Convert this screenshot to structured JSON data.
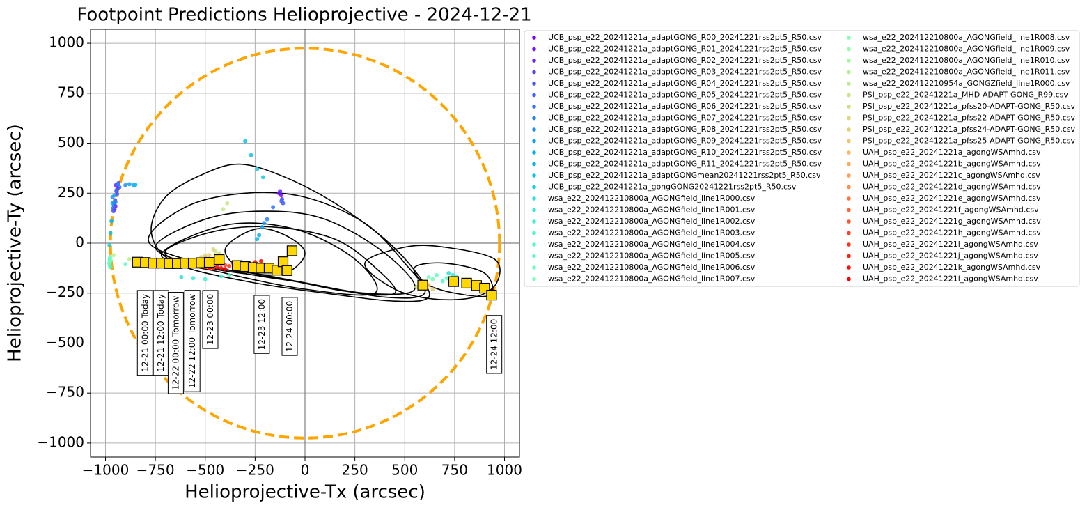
{
  "chart_data": {
    "type": "scatter",
    "title": "Footpoint Predictions Helioprojective - 2024-12-21",
    "x_label": "Helioprojective-Tx (arcsec)",
    "y_label": "Helioprojective-Ty (arcsec)",
    "xlim": [
      -1075,
      1075
    ],
    "ylim": [
      -1070,
      1070
    ],
    "xticks": [
      {
        "value": -1000,
        "label": "−1000"
      },
      {
        "value": -750,
        "label": "−750"
      },
      {
        "value": -500,
        "label": "−500"
      },
      {
        "value": -250,
        "label": "−250"
      },
      0,
      250,
      500,
      750,
      1000
    ],
    "yticks": [
      {
        "value": -1000,
        "label": "−1000"
      },
      {
        "value": -750,
        "label": "−750"
      },
      {
        "value": -500,
        "label": "−500"
      },
      {
        "value": -250,
        "label": "−250"
      },
      0,
      250,
      500,
      750,
      1000
    ],
    "grid": true,
    "legend": "outside right",
    "legend_columns": 2,
    "limb_radius": 975,
    "limb_color": "#ffa500",
    "field_line_color": "#000000",
    "series": [
      {
        "name": "UCB_psp_e22_20241221a_adaptGONG_R00_20241221rss2pt5_R50.csv",
        "color": "#8000ff",
        "x": [
          -955,
          -945,
          -120
        ],
        "y": [
          170,
          260,
          240
        ]
      },
      {
        "name": "UCB_psp_e22_20241221a_adaptGONG_R01_20241221rss2pt5_R50.csv",
        "color": "#7411ff",
        "x": [
          -950,
          -940,
          -130
        ],
        "y": [
          185,
          275,
          250
        ]
      },
      {
        "name": "UCB_psp_e22_20241221a_adaptGONG_R02_20241221rss2pt5_R50.csv",
        "color": "#6a22fe",
        "x": [
          -958,
          -948,
          -125
        ],
        "y": [
          200,
          290,
          260
        ]
      },
      {
        "name": "UCB_psp_e22_20241221a_adaptGONG_R03_20241221rss2pt5_R50.csv",
        "color": "#5443fc",
        "x": [
          -952,
          -935,
          -115
        ],
        "y": [
          215,
          300,
          220
        ]
      },
      {
        "name": "UCB_psp_e22_20241221a_adaptGONG_R04_20241221rss2pt5_R50.csv",
        "color": "#4954fb",
        "x": [
          -960,
          -942,
          -110
        ],
        "y": [
          160,
          245,
          200
        ]
      },
      {
        "name": "UCB_psp_e22_20241221a_adaptGONG_R05_20241221rss2pt5_R50.csv",
        "color": "#3e64fa",
        "x": [
          -957,
          -930,
          -118
        ],
        "y": [
          190,
          280,
          210
        ]
      },
      {
        "name": "UCB_psp_e22_20241221a_adaptGONG_R06_20241221rss2pt5_R50.csv",
        "color": "#3473f8",
        "x": [
          -962,
          -945,
          -160
        ],
        "y": [
          175,
          265,
          180
        ]
      },
      {
        "name": "UCB_psp_e22_20241221a_adaptGONG_R07_20241221rss2pt5_R50.csv",
        "color": "#2983f6",
        "x": [
          -950,
          -938,
          -190
        ],
        "y": [
          205,
          295,
          120
        ]
      },
      {
        "name": "UCB_psp_e22_20241221a_adaptGONG_R08_20241221rss2pt5_R50.csv",
        "color": "#1e92f3",
        "x": [
          -965,
          -900,
          -205
        ],
        "y": [
          230,
          290,
          100
        ]
      },
      {
        "name": "UCB_psp_e22_20241221a_adaptGONG_R09_20241221rss2pt5_R50.csv",
        "color": "#13a0f1",
        "x": [
          -955,
          -880,
          -215
        ],
        "y": [
          240,
          295,
          80
        ]
      },
      {
        "name": "UCB_psp_e22_20241221a_adaptGONG_R10_20241221rss2pt5_R50.csv",
        "color": "#08aeee",
        "x": [
          -965,
          -860,
          -230
        ],
        "y": [
          200,
          290,
          40
        ]
      },
      {
        "name": "UCB_psp_e22_20241221a_adaptGONG_R11_20241221rss2pt5_R50.csv",
        "color": "#03b8ea",
        "x": [
          -970,
          -850,
          -240
        ],
        "y": [
          110,
          292,
          20
        ]
      },
      {
        "name": "UCB_psp_e22_20241221a_adaptGONGmean20241221rss2pt5_R50.csv",
        "color": "#0ec4e7",
        "x": [
          -975,
          -300,
          -270
        ],
        "y": [
          50,
          510,
          440
        ]
      },
      {
        "name": "UCB_psp_e22_20241221a_gongGONG20241221rss2pt5_R50.csv",
        "color": "#18cde3",
        "x": [
          -980,
          -240,
          -210
        ],
        "y": [
          -10,
          370,
          330
        ]
      },
      {
        "name": "wsa_e22_202412210800a_AGONGfield_line1R000.csv",
        "color": "#2edfdb",
        "x": [
          -978,
          -620,
          720
        ],
        "y": [
          -80,
          -170,
          -150
        ]
      },
      {
        "name": "wsa_e22_202412210800a_AGONGfield_line1R001.csv",
        "color": "#39e7d6",
        "x": [
          -980,
          -560,
          740
        ],
        "y": [
          -100,
          -175,
          -160
        ]
      },
      {
        "name": "wsa_e22_202412210800a_AGONGfield_line1R002.csv",
        "color": "#44eed1",
        "x": [
          -976,
          -500,
          760
        ],
        "y": [
          -120,
          -180,
          -170
        ]
      },
      {
        "name": "wsa_e22_202412210800a_AGONGfield_line1R003.csv",
        "color": "#4ff4cc",
        "x": [
          -975,
          -420,
          690
        ],
        "y": [
          -90,
          -165,
          -190
        ]
      },
      {
        "name": "wsa_e22_202412210800a_AGONGfield_line1R004.csv",
        "color": "#59f9c7",
        "x": [
          -979,
          -380,
          710
        ],
        "y": [
          -110,
          -160,
          -175
        ]
      },
      {
        "name": "wsa_e22_202412210800a_AGONGfield_line1R005.csv",
        "color": "#64fcc1",
        "x": [
          -977,
          -900,
          660
        ],
        "y": [
          -70,
          -105,
          -160
        ]
      },
      {
        "name": "wsa_e22_202412210800a_AGONGfield_line1R006.csv",
        "color": "#6ffebb",
        "x": [
          -980,
          -860,
          640
        ],
        "y": [
          -95,
          -110,
          -180
        ]
      },
      {
        "name": "wsa_e22_202412210800a_AGONGfield_line1R007.csv",
        "color": "#7affb5",
        "x": [
          -975,
          -820,
          620
        ],
        "y": [
          -85,
          -105,
          -170
        ]
      },
      {
        "name": "wsa_e22_202412210800a_AGONGfield_line1R008.csv",
        "color": "#85ffaf",
        "x": [
          -780,
          -700,
          -600
        ],
        "y": [
          -90,
          -110,
          -95
        ]
      },
      {
        "name": "wsa_e22_202412210800a_AGONGfield_line1R009.csv",
        "color": "#90fea9",
        "x": [
          -760,
          -680,
          -580
        ],
        "y": [
          -100,
          -115,
          -90
        ]
      },
      {
        "name": "wsa_e22_202412210800a_AGONGfield_line1R010.csv",
        "color": "#9bfba2",
        "x": [
          -740,
          -660,
          -540
        ],
        "y": [
          -95,
          -105,
          -85
        ]
      },
      {
        "name": "wsa_e22_202412210800a_AGONGfield_line1R011.csv",
        "color": "#b0f395",
        "x": [
          -720,
          -640,
          -520
        ],
        "y": [
          -105,
          -110,
          -95
        ]
      },
      {
        "name": "wsa_e22_202412210954a_GONGZfield_line1R000.csv",
        "color": "#bbee8e",
        "x": [
          -960,
          -880,
          580
        ],
        "y": [
          -60,
          -80,
          -220
        ]
      },
      {
        "name": "PSI_psp_e22_20241221a_MHD-ADAPT-GONG_R99.csv",
        "color": "#c6e687",
        "x": [
          -390,
          -410,
          -450
        ],
        "y": [
          200,
          170,
          -40
        ]
      },
      {
        "name": "PSI_psp_e22_20241221a_pfss20-ADAPT-GONG_R50.csv",
        "color": "#d1de80",
        "x": [
          -500,
          -430,
          560
        ],
        "y": [
          -60,
          -50,
          -220
        ]
      },
      {
        "name": "PSI_psp_e22_20241221a_pfss22-ADAPT-GONG_R50.csv",
        "color": "#dcd779",
        "x": [
          -520,
          -460,
          600
        ],
        "y": [
          -70,
          -30,
          -200
        ]
      },
      {
        "name": "PSI_psp_e22_20241221a_pfss24-ADAPT-GONG_R50.csv",
        "color": "#e6cd72",
        "x": [
          -540,
          -480,
          640
        ],
        "y": [
          -80,
          -60,
          -230
        ]
      },
      {
        "name": "PSI_psp_e22_20241221a_pfss25-ADAPT-GONG_R50.csv",
        "color": "#f1c36a",
        "x": [
          -560,
          -500,
          620
        ],
        "y": [
          -90,
          -70,
          -210
        ]
      },
      {
        "name": "UAH_psp_e22_20241221a_agongWSAmhd.csv",
        "color": "#fcb862",
        "x": [
          -700,
          -620,
          -540
        ],
        "y": [
          -90,
          -100,
          -95
        ]
      },
      {
        "name": "UAH_psp_e22_20241221b_agongWSAmhd.csv",
        "color": "#ffab5a",
        "x": [
          -680,
          -600,
          -520
        ],
        "y": [
          -95,
          -105,
          -100
        ]
      },
      {
        "name": "UAH_psp_e22_20241221c_agongWSAmhd.csv",
        "color": "#ff9f53",
        "x": [
          -660,
          -580,
          -500
        ],
        "y": [
          -100,
          -110,
          -105
        ]
      },
      {
        "name": "UAH_psp_e22_20241221d_agongWSAmhd.csv",
        "color": "#ff924b",
        "x": [
          -640,
          -560,
          -480
        ],
        "y": [
          -105,
          -115,
          -100
        ]
      },
      {
        "name": "UAH_psp_e22_20241221e_agongWSAmhd.csv",
        "color": "#ff753b",
        "x": [
          -620,
          -540,
          -460
        ],
        "y": [
          -95,
          -110,
          -100
        ]
      },
      {
        "name": "UAH_psp_e22_20241221f_agongWSAmhd.csv",
        "color": "#ff6533",
        "x": [
          -600,
          -520,
          -440
        ],
        "y": [
          -100,
          -105,
          -110
        ]
      },
      {
        "name": "UAH_psp_e22_20241221g_agongWSAmhd.csv",
        "color": "#ff542a",
        "x": [
          -580,
          -500,
          -420
        ],
        "y": [
          -110,
          -115,
          -105
        ]
      },
      {
        "name": "UAH_psp_e22_20241221h_agongWSAmhd.csv",
        "color": "#ff4322",
        "x": [
          -560,
          -480,
          -400
        ],
        "y": [
          -105,
          -120,
          -110
        ]
      },
      {
        "name": "UAH_psp_e22_20241221i_agongWSAmhd.csv",
        "color": "#ff331a",
        "x": [
          -540,
          -460,
          -380
        ],
        "y": [
          -110,
          -125,
          -115
        ]
      },
      {
        "name": "UAH_psp_e22_20241221j_agongWSAmhd.csv",
        "color": "#ff2211",
        "x": [
          -520,
          -440,
          -360
        ],
        "y": [
          -115,
          -120,
          -100
        ]
      },
      {
        "name": "UAH_psp_e22_20241221k_agongWSAmhd.csv",
        "color": "#ff1108",
        "x": [
          -500,
          -420,
          -250
        ],
        "y": [
          -120,
          -125,
          -95
        ]
      },
      {
        "name": "UAH_psp_e22_20241221l_agongWSAmhd.csv",
        "color": "#ff0000",
        "x": [
          -480,
          -400,
          -220
        ],
        "y": [
          -125,
          -130,
          -90
        ]
      }
    ],
    "field_lines": [
      {
        "x": [
          -770,
          -700,
          -500,
          -320,
          -100,
          150,
          400,
          560,
          620,
          450,
          100,
          -300,
          -650
        ],
        "y": [
          50,
          230,
          350,
          395,
          330,
          200,
          20,
          -150,
          -270,
          -290,
          -250,
          -190,
          -100
        ]
      },
      {
        "x": [
          -780,
          -600,
          -300,
          0,
          300,
          500,
          600,
          400,
          0,
          -400
        ],
        "y": [
          0,
          180,
          250,
          230,
          100,
          -100,
          -250,
          -270,
          -200,
          -130
        ]
      },
      {
        "x": [
          -750,
          -500,
          -200,
          100,
          400,
          550,
          300,
          -100,
          -500
        ],
        "y": [
          -20,
          120,
          160,
          120,
          -50,
          -230,
          -250,
          -180,
          -120
        ]
      },
      {
        "x": [
          -700,
          -450,
          -150,
          150,
          350,
          450,
          200,
          -200,
          -550
        ],
        "y": [
          -40,
          60,
          80,
          20,
          -120,
          -250,
          -240,
          -160,
          -110
        ]
      },
      {
        "x": [
          -720,
          -400,
          -50,
          250,
          350,
          0,
          -400
        ],
        "y": [
          -60,
          90,
          70,
          -80,
          -250,
          -230,
          -150
        ]
      },
      {
        "x": [
          300,
          500,
          700,
          950,
          960,
          850,
          650,
          450
        ],
        "y": [
          -100,
          -20,
          -20,
          -80,
          -200,
          -270,
          -280,
          -230
        ]
      },
      {
        "x": [
          550,
          700,
          900,
          930,
          750,
          600
        ],
        "y": [
          -120,
          -100,
          -150,
          -260,
          -250,
          -200
        ]
      },
      {
        "x": [
          -400,
          -250,
          -100,
          0,
          -100,
          -300
        ],
        "y": [
          -30,
          70,
          40,
          -50,
          -150,
          -140
        ]
      }
    ],
    "footpoints": {
      "color": "#ffd700",
      "x": [
        -840,
        -800,
        -760,
        -720,
        -680,
        -640,
        -600,
        -560,
        -520,
        -480,
        -430,
        -340,
        -300,
        -260,
        -220,
        -180,
        -140,
        -110,
        -90,
        -65,
        590,
        745,
        810,
        860,
        900,
        935
      ],
      "y": [
        -95,
        -97,
        -100,
        -100,
        -102,
        -102,
        -100,
        -100,
        -98,
        -96,
        -82,
        -112,
        -117,
        -122,
        -125,
        -125,
        -135,
        -93,
        -137,
        -38,
        -210,
        -192,
        -200,
        -212,
        -225,
        -260
      ]
    },
    "annotations": [
      {
        "text": "12-21 00:00 Today",
        "x": -800,
        "y": -240
      },
      {
        "text": "12-21 12:00 Today",
        "x": -720,
        "y": -240
      },
      {
        "text": "12-22 00:00 Tomorrow",
        "x": -646,
        "y": -250
      },
      {
        "text": "12-22 12:00 Tomorrow",
        "x": -563,
        "y": -240
      },
      {
        "text": "12-23 00:00",
        "x": -473,
        "y": -240
      },
      {
        "text": "12-23 12:00",
        "x": -215,
        "y": -265
      },
      {
        "text": "12-24 00:00",
        "x": -75,
        "y": -275
      },
      {
        "text": "12-24 12:00",
        "x": 950,
        "y": -365
      }
    ]
  }
}
